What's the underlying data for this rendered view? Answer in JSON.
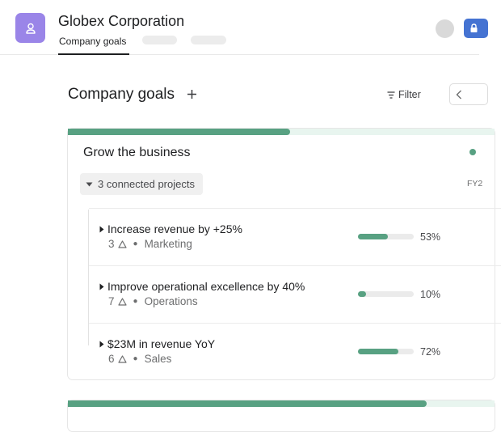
{
  "header": {
    "org_name": "Globex Corporation",
    "active_tab": "Company goals",
    "colors": {
      "org_avatar": "#9a85e8",
      "lock_button": "#4573d2"
    },
    "icons": {
      "org": "person-icon",
      "lock": "lock-icon"
    }
  },
  "toolbar": {
    "page_title": "Company goals",
    "add_label": "+",
    "filter_label": "Filter",
    "prev_label": "‹"
  },
  "goal": {
    "title": "Grow the business",
    "period_label": "FY2",
    "progress": 0.52,
    "connected_label": "3 connected projects",
    "colors": {
      "progress": "#58a182",
      "progress_track": "#e8f5ef"
    },
    "subgoals": [
      {
        "title": "Increase revenue by +25%",
        "count": "3",
        "team": "Marketing",
        "progress": 0.53,
        "pct_label": "53%"
      },
      {
        "title": "Improve operational excellence by 40%",
        "count": "7",
        "team": "Operations",
        "progress": 0.1,
        "pct_label": "10%"
      },
      {
        "title": "$23M in revenue YoY",
        "count": "6",
        "team": "Sales",
        "progress": 0.72,
        "pct_label": "72%"
      }
    ]
  },
  "next_goal": {
    "progress": 0.84
  }
}
